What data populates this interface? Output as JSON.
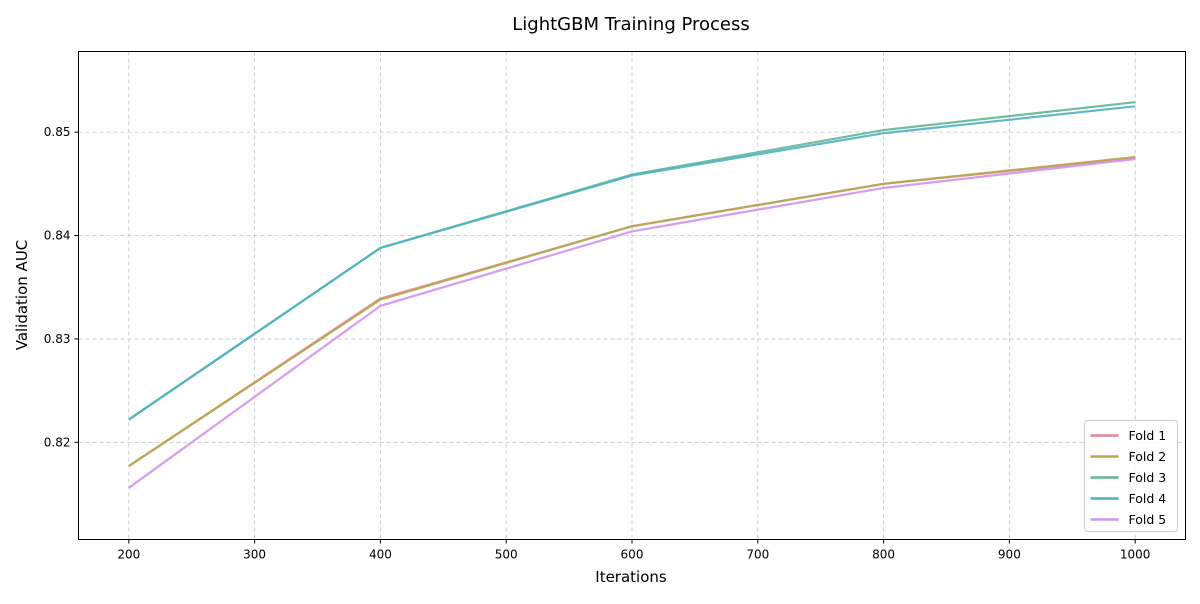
{
  "chart_data": {
    "type": "line",
    "title": "LightGBM Training Process",
    "xlabel": "Iterations",
    "ylabel": "Validation AUC",
    "x": [
      200,
      400,
      600,
      800,
      1000
    ],
    "xlim": [
      160,
      1040
    ],
    "ylim": [
      0.8106,
      0.8578
    ],
    "x_ticks": [
      200,
      300,
      400,
      500,
      600,
      700,
      800,
      900,
      1000
    ],
    "y_ticks": [
      0.82,
      0.83,
      0.84,
      0.85
    ],
    "x_tick_labels": [
      "200",
      "300",
      "400",
      "500",
      "600",
      "700",
      "800",
      "900",
      "1000"
    ],
    "y_tick_labels": [
      "0.82",
      "0.83",
      "0.84",
      "0.85"
    ],
    "grid": true,
    "legend_position": "bottom-right",
    "series": [
      {
        "name": "Fold 1",
        "color": "#e8829a",
        "values": [
          0.8177,
          0.8339,
          0.8409,
          0.845,
          0.8475
        ]
      },
      {
        "name": "Fold 2",
        "color": "#b5a84e",
        "values": [
          0.8177,
          0.8338,
          0.8409,
          0.845,
          0.8476
        ]
      },
      {
        "name": "Fold 3",
        "color": "#5fb88d",
        "values": [
          0.8222,
          0.8388,
          0.8459,
          0.8502,
          0.8529
        ]
      },
      {
        "name": "Fold 4",
        "color": "#4fb0c6",
        "values": [
          0.8222,
          0.8388,
          0.8458,
          0.8499,
          0.8525
        ]
      },
      {
        "name": "Fold 5",
        "color": "#d490ee",
        "values": [
          0.8156,
          0.8332,
          0.8404,
          0.8446,
          0.8474
        ]
      }
    ]
  }
}
